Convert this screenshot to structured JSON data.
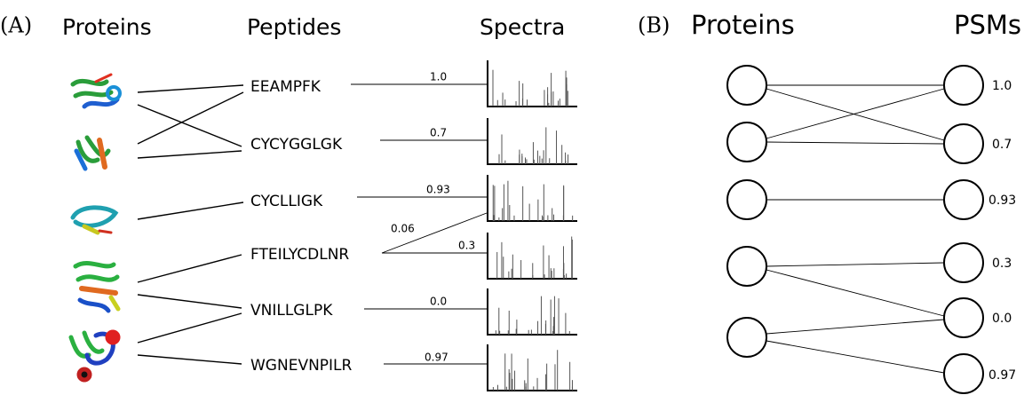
{
  "panel_a": {
    "label": "(A)",
    "headers": [
      "Proteins",
      "Peptides",
      "Spectra"
    ],
    "peptides": [
      "EEAMPFK",
      "CYCYGGLGK",
      "CYCLLIGK",
      "FTEILYCDLNR",
      "VNILLGLPK",
      "WGNEVNPILR"
    ],
    "scores": [
      "1.0",
      "0.7",
      "0.93",
      "0.06",
      "0.3",
      "0.0",
      "0.97"
    ]
  },
  "panel_b": {
    "label": "(B)",
    "headers": [
      "Proteins",
      "PSMs"
    ],
    "scores": [
      "1.0",
      "0.7",
      "0.93",
      "0.3",
      "0.0",
      "0.97"
    ]
  }
}
